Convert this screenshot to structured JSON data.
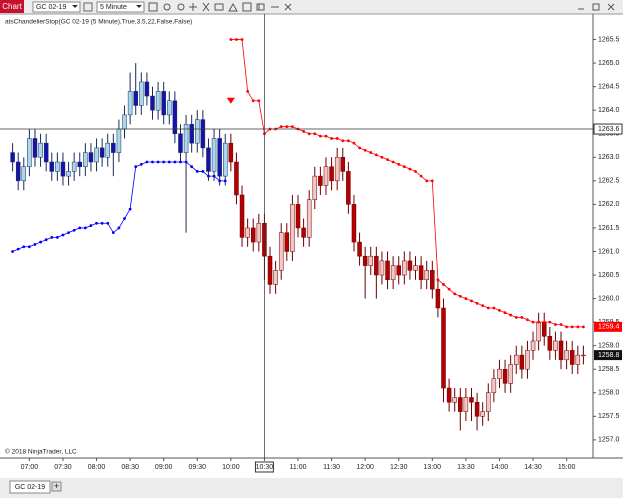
{
  "toolbar": {
    "tab": "Chart",
    "instrument": "GC 02-19",
    "interval": "5 Minute"
  },
  "footer_tabs": {
    "tab": "GC 02-19",
    "add": "+"
  },
  "chart_data": {
    "type": "candlestick",
    "indicator_label": "atsChandelierStop(GC 02-19 (5 Minute),True,3.5,22,False,False)",
    "copyright": "© 2018 NinjaTrader, LLC",
    "x": [
      "06:45",
      "06:50",
      "06:55",
      "07:00",
      "07:05",
      "07:10",
      "07:15",
      "07:20",
      "07:25",
      "07:30",
      "07:35",
      "07:40",
      "07:45",
      "07:50",
      "07:55",
      "08:00",
      "08:05",
      "08:10",
      "08:15",
      "08:20",
      "08:25",
      "08:30",
      "08:35",
      "08:40",
      "08:45",
      "08:50",
      "08:55",
      "09:00",
      "09:05",
      "09:10",
      "09:15",
      "09:20",
      "09:25",
      "09:30",
      "09:35",
      "09:40",
      "09:45",
      "09:50",
      "09:55",
      "10:00",
      "10:05",
      "10:10",
      "10:15",
      "10:20",
      "10:25",
      "10:30",
      "10:35",
      "10:40",
      "10:45",
      "10:50",
      "10:55",
      "11:00",
      "11:05",
      "11:10",
      "11:15",
      "11:20",
      "11:25",
      "11:30",
      "11:35",
      "11:40",
      "11:45",
      "11:50",
      "11:55",
      "12:00",
      "12:05",
      "12:10",
      "12:15",
      "12:20",
      "12:25",
      "12:30",
      "12:35",
      "12:40",
      "12:45",
      "12:50",
      "12:55",
      "13:00",
      "13:05",
      "13:10",
      "13:15",
      "13:20",
      "13:25",
      "13:30",
      "13:35",
      "13:40",
      "13:45",
      "13:50",
      "13:55",
      "14:00",
      "14:05",
      "14:10",
      "14:15",
      "14:20",
      "14:25",
      "14:30",
      "14:35",
      "14:40",
      "14:45",
      "14:50",
      "14:55",
      "15:00",
      "15:05",
      "15:10",
      "15:15"
    ],
    "open": [
      1263.1,
      1262.9,
      1262.5,
      1262.8,
      1263.4,
      1263.0,
      1263.3,
      1262.9,
      1262.7,
      1262.9,
      1262.6,
      1262.7,
      1262.9,
      1262.8,
      1263.1,
      1262.9,
      1263.2,
      1263.0,
      1263.3,
      1263.1,
      1263.6,
      1263.9,
      1264.4,
      1264.1,
      1264.6,
      1264.3,
      1264.0,
      1264.4,
      1263.9,
      1264.2,
      1263.5,
      1263.1,
      1263.7,
      1263.3,
      1263.8,
      1263.2,
      1262.7,
      1263.4,
      1262.6,
      1263.3,
      1262.9,
      1262.2,
      1261.3,
      1261.5,
      1261.2,
      1261.6,
      1260.9,
      1260.3,
      1260.6,
      1261.4,
      1261.0,
      1262.0,
      1261.5,
      1261.3,
      1262.1,
      1262.6,
      1262.4,
      1262.8,
      1262.5,
      1263.0,
      1262.7,
      1262.0,
      1261.2,
      1260.9,
      1260.7,
      1260.9,
      1260.5,
      1260.8,
      1260.4,
      1260.7,
      1260.5,
      1260.8,
      1260.6,
      1260.7,
      1260.4,
      1260.6,
      1260.2,
      1259.8,
      1258.1,
      1257.8,
      1257.9,
      1257.6,
      1257.9,
      1257.8,
      1257.5,
      1257.6,
      1258.0,
      1258.3,
      1258.5,
      1258.2,
      1258.6,
      1258.8,
      1258.5,
      1258.9,
      1259.1,
      1259.5,
      1259.2,
      1258.9,
      1259.1,
      1258.7,
      1258.9,
      1258.6,
      1258.8
    ],
    "high": [
      1263.3,
      1263.1,
      1263.0,
      1263.6,
      1263.6,
      1263.5,
      1263.5,
      1263.1,
      1263.1,
      1263.1,
      1262.9,
      1263.1,
      1263.1,
      1263.3,
      1263.3,
      1263.4,
      1263.4,
      1263.5,
      1263.5,
      1263.8,
      1264.1,
      1264.8,
      1265.0,
      1264.8,
      1264.8,
      1264.5,
      1264.6,
      1264.6,
      1264.4,
      1264.4,
      1263.7,
      1263.9,
      1263.9,
      1264.0,
      1264.0,
      1263.4,
      1263.6,
      1263.6,
      1263.5,
      1263.5,
      1263.1,
      1262.4,
      1261.7,
      1261.7,
      1261.8,
      1261.8,
      1261.1,
      1260.8,
      1261.6,
      1261.6,
      1262.2,
      1262.2,
      1261.7,
      1262.3,
      1262.8,
      1262.8,
      1263.0,
      1263.0,
      1263.2,
      1263.2,
      1262.9,
      1262.2,
      1261.4,
      1261.1,
      1261.1,
      1261.1,
      1261.0,
      1261.0,
      1260.9,
      1260.9,
      1261.0,
      1261.0,
      1260.9,
      1260.9,
      1260.8,
      1260.8,
      1260.4,
      1260.0,
      1258.3,
      1258.1,
      1258.1,
      1258.1,
      1258.1,
      1258.0,
      1257.8,
      1258.2,
      1258.5,
      1258.7,
      1258.7,
      1258.8,
      1259.0,
      1259.0,
      1259.1,
      1259.3,
      1259.7,
      1259.7,
      1259.4,
      1259.3,
      1259.3,
      1259.1,
      1259.1,
      1259.0,
      1259.0
    ],
    "low": [
      1262.7,
      1262.3,
      1262.3,
      1262.6,
      1262.8,
      1262.8,
      1262.7,
      1262.5,
      1262.5,
      1262.4,
      1262.4,
      1262.5,
      1262.6,
      1262.6,
      1262.7,
      1262.7,
      1262.8,
      1262.8,
      1262.6,
      1262.9,
      1263.4,
      1263.7,
      1263.9,
      1263.9,
      1264.1,
      1263.8,
      1263.8,
      1263.7,
      1263.7,
      1263.3,
      1262.9,
      1261.4,
      1263.1,
      1263.1,
      1263.0,
      1262.5,
      1262.5,
      1262.4,
      1262.4,
      1262.7,
      1262.0,
      1261.1,
      1261.1,
      1261.0,
      1261.0,
      1260.4,
      1260.1,
      1260.1,
      1260.4,
      1260.8,
      1260.8,
      1261.3,
      1261.1,
      1261.1,
      1261.9,
      1262.2,
      1262.2,
      1262.3,
      1262.3,
      1262.5,
      1261.8,
      1261.0,
      1260.7,
      1260.0,
      1260.5,
      1260.0,
      1260.3,
      1260.2,
      1260.2,
      1260.3,
      1260.3,
      1260.4,
      1260.4,
      1260.2,
      1260.2,
      1260.0,
      1259.6,
      1257.8,
      1257.6,
      1257.6,
      1257.2,
      1257.4,
      1257.4,
      1257.2,
      1257.3,
      1257.4,
      1257.8,
      1258.1,
      1258.0,
      1258.0,
      1258.4,
      1258.3,
      1258.3,
      1258.7,
      1258.9,
      1259.0,
      1258.7,
      1258.7,
      1258.5,
      1258.5,
      1258.4,
      1258.4,
      1258.6
    ],
    "close": [
      1262.9,
      1262.5,
      1262.8,
      1263.4,
      1263.0,
      1263.3,
      1262.9,
      1262.7,
      1262.9,
      1262.6,
      1262.7,
      1262.9,
      1262.8,
      1263.1,
      1262.9,
      1263.2,
      1263.0,
      1263.3,
      1263.1,
      1263.6,
      1263.9,
      1264.4,
      1264.1,
      1264.6,
      1264.3,
      1264.0,
      1264.4,
      1263.9,
      1264.2,
      1263.5,
      1263.1,
      1263.7,
      1263.3,
      1263.8,
      1263.2,
      1262.7,
      1263.4,
      1262.6,
      1263.3,
      1262.9,
      1262.2,
      1261.3,
      1261.5,
      1261.2,
      1261.6,
      1260.9,
      1260.3,
      1260.6,
      1261.4,
      1261.0,
      1262.0,
      1261.5,
      1261.3,
      1262.1,
      1262.6,
      1262.4,
      1262.8,
      1262.5,
      1263.0,
      1262.7,
      1262.0,
      1261.2,
      1260.9,
      1260.7,
      1260.9,
      1260.5,
      1260.8,
      1260.4,
      1260.7,
      1260.5,
      1260.8,
      1260.6,
      1260.7,
      1260.4,
      1260.6,
      1260.2,
      1259.8,
      1258.1,
      1257.8,
      1257.9,
      1257.6,
      1257.9,
      1257.8,
      1257.5,
      1257.6,
      1258.0,
      1258.3,
      1258.5,
      1258.2,
      1258.6,
      1258.8,
      1258.5,
      1258.9,
      1259.1,
      1259.5,
      1259.2,
      1258.9,
      1259.1,
      1258.7,
      1258.9,
      1258.6,
      1258.8,
      1258.8
    ],
    "candle_colors": {
      "long_up": "#a8d8ea",
      "long_down": "#1414a8",
      "short_up": "#f4c6c6",
      "short_down": "#b40000",
      "outline_long": "#1a2a5a",
      "outline_short": "#6a0000"
    },
    "series": [
      {
        "color": "#0000ff",
        "values": [
          1261.0,
          1261.05,
          1261.1,
          1261.1,
          1261.15,
          1261.2,
          1261.25,
          1261.3,
          1261.3,
          1261.35,
          1261.4,
          1261.45,
          1261.5,
          1261.5,
          1261.55,
          1261.6,
          1261.6,
          1261.6,
          1261.4,
          1261.5,
          1261.7,
          1261.9,
          1262.8,
          1262.85,
          1262.9,
          1262.9,
          1262.9,
          1262.9,
          1262.9,
          1262.9,
          1262.9,
          1262.9,
          1262.8,
          1262.7,
          1262.7,
          1262.6,
          1262.6,
          1262.5,
          1262.5,
          null,
          null,
          null,
          null,
          null,
          null,
          null,
          null,
          null,
          null,
          null,
          null,
          null,
          null,
          null,
          null,
          null,
          null,
          null,
          null,
          null,
          null,
          null,
          null,
          null,
          null,
          null,
          null,
          null,
          null,
          null,
          null,
          null,
          null,
          null,
          null,
          null,
          null,
          null,
          null,
          null,
          null,
          null,
          null,
          null,
          null,
          null,
          null,
          null,
          null,
          null,
          null,
          null,
          null,
          null,
          null,
          null,
          null,
          null,
          null,
          null,
          null,
          null,
          null
        ]
      },
      {
        "color": "#ff0000",
        "values": [
          null,
          null,
          null,
          null,
          null,
          null,
          null,
          null,
          null,
          null,
          null,
          null,
          null,
          null,
          null,
          null,
          null,
          null,
          null,
          null,
          null,
          null,
          null,
          null,
          null,
          null,
          null,
          null,
          null,
          null,
          null,
          null,
          null,
          null,
          null,
          null,
          null,
          null,
          null,
          1265.5,
          1265.5,
          1265.5,
          1264.4,
          1264.2,
          1264.2,
          1263.5,
          1263.6,
          1263.6,
          1263.65,
          1263.65,
          1263.65,
          1263.6,
          1263.55,
          1263.5,
          1263.5,
          1263.45,
          1263.45,
          1263.4,
          1263.4,
          1263.35,
          1263.35,
          1263.3,
          1263.2,
          1263.15,
          1263.1,
          1263.05,
          1263.0,
          1262.95,
          1262.9,
          1262.85,
          1262.8,
          1262.75,
          1262.7,
          1262.6,
          1262.5,
          1262.5,
          1260.4,
          1260.3,
          1260.2,
          1260.1,
          1260.05,
          1260.0,
          1259.95,
          1259.9,
          1259.85,
          1259.8,
          1259.8,
          1259.75,
          1259.7,
          1259.65,
          1259.6,
          1259.6,
          1259.55,
          1259.5,
          1259.5,
          1259.5,
          1259.5,
          1259.45,
          1259.45,
          1259.4,
          1259.4,
          1259.4,
          1259.4
        ]
      }
    ],
    "signal": {
      "x": "10:00",
      "value": 1264.2,
      "color": "#ff0000"
    },
    "crosshair": {
      "x": "10:30",
      "y": 1263.6
    },
    "xlim": [
      "06:40",
      "15:20"
    ],
    "xticks": [
      "07:00",
      "07:30",
      "08:00",
      "08:30",
      "09:00",
      "09:30",
      "10:00",
      "10:30",
      "11:00",
      "11:30",
      "12:00",
      "12:30",
      "13:00",
      "13:30",
      "14:00",
      "14:30",
      "15:00"
    ],
    "ylim": [
      1256.7,
      1266.0
    ],
    "yticks": [
      {
        "value": 1257,
        "label": "1257.0"
      },
      1257.5,
      {
        "value": 1258,
        "label": "1258.0"
      },
      1258.5,
      {
        "value": 1259,
        "label": "1259.0"
      },
      1259.5,
      {
        "value": 1260,
        "label": "1260.0"
      },
      1260.5,
      {
        "value": 1261,
        "label": "1261.0"
      },
      1261.5,
      {
        "value": 1262,
        "label": "1262.0"
      },
      1262.5,
      {
        "value": 1263,
        "label": "1263.0"
      },
      1263.5,
      {
        "value": 1264,
        "label": "1264.0"
      },
      1264.5,
      {
        "value": 1265,
        "label": "1265.0"
      },
      1265.5
    ],
    "grid": false
  }
}
